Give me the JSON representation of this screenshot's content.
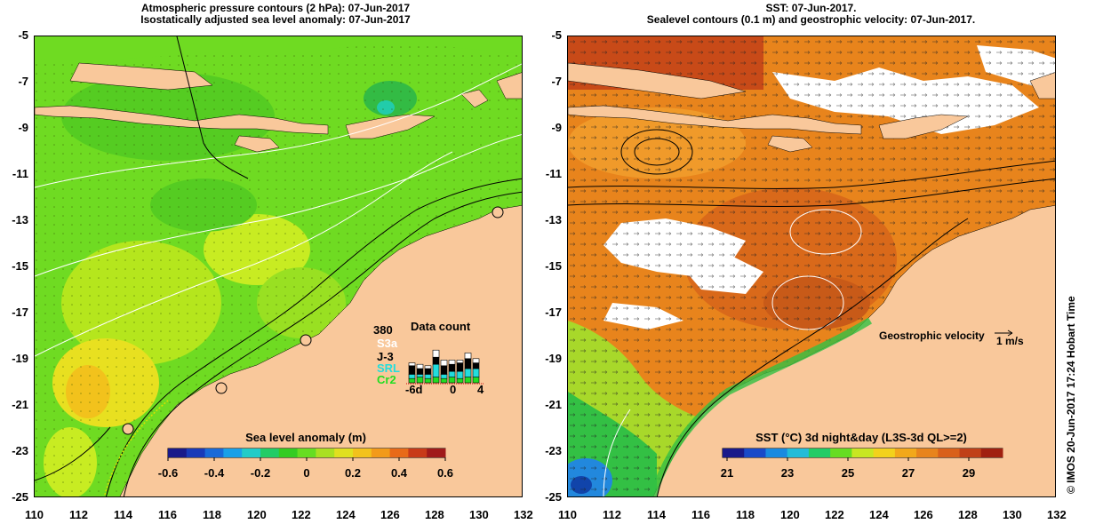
{
  "left_panel": {
    "title_line1": "Atmospheric pressure contours (2 hPa): 07-Jun-2017",
    "title_line2": "Isostatically adjusted sea level anomaly: 07-Jun-2017",
    "x_ticks": [
      "110",
      "112",
      "114",
      "116",
      "118",
      "120",
      "122",
      "124",
      "126",
      "128",
      "130",
      "132"
    ],
    "y_ticks": [
      "-5",
      "-7",
      "-9",
      "-11",
      "-13",
      "-15",
      "-17",
      "-19",
      "-21",
      "-23",
      "-25"
    ],
    "colorbar": {
      "title": "Sea level anomaly (m)",
      "ticks": [
        "-0.6",
        "-0.4",
        "-0.2",
        "0",
        "0.2",
        "0.4",
        "0.6"
      ]
    },
    "data_count": {
      "title": "Data count",
      "max_label": "380",
      "missions": [
        "S3a",
        "J-3",
        "SRL",
        "Cr2"
      ],
      "mission_colors": [
        "#ffffff",
        "#000000",
        "#22dddd",
        "#22dd22"
      ],
      "x_labels": [
        "-6d",
        "0",
        "4"
      ]
    }
  },
  "right_panel": {
    "title_line1": "SST: 07-Jun-2017.",
    "title_line2": "Sealevel contours (0.1 m) and geostrophic velocity: 07-Jun-2017.",
    "x_ticks": [
      "110",
      "112",
      "114",
      "116",
      "118",
      "120",
      "122",
      "124",
      "126",
      "128",
      "130",
      "132"
    ],
    "y_ticks": [
      "-5",
      "-7",
      "-9",
      "-11",
      "-13",
      "-15",
      "-17",
      "-19",
      "-21",
      "-23",
      "-25"
    ],
    "velocity_label": "Geostrophic velocity",
    "velocity_scale": "1 m/s",
    "colorbar": {
      "title": "SST (°C) 3d night&day (L3S-3d QL>=2)",
      "ticks": [
        "21",
        "23",
        "25",
        "27",
        "29"
      ]
    }
  },
  "credit": "© IMOS 20-Jun-2017 17:24 Hobart Time",
  "colors": {
    "land": "#f9c89b",
    "sla_green": "#66dd22",
    "sst_orange": "#e8841c"
  }
}
